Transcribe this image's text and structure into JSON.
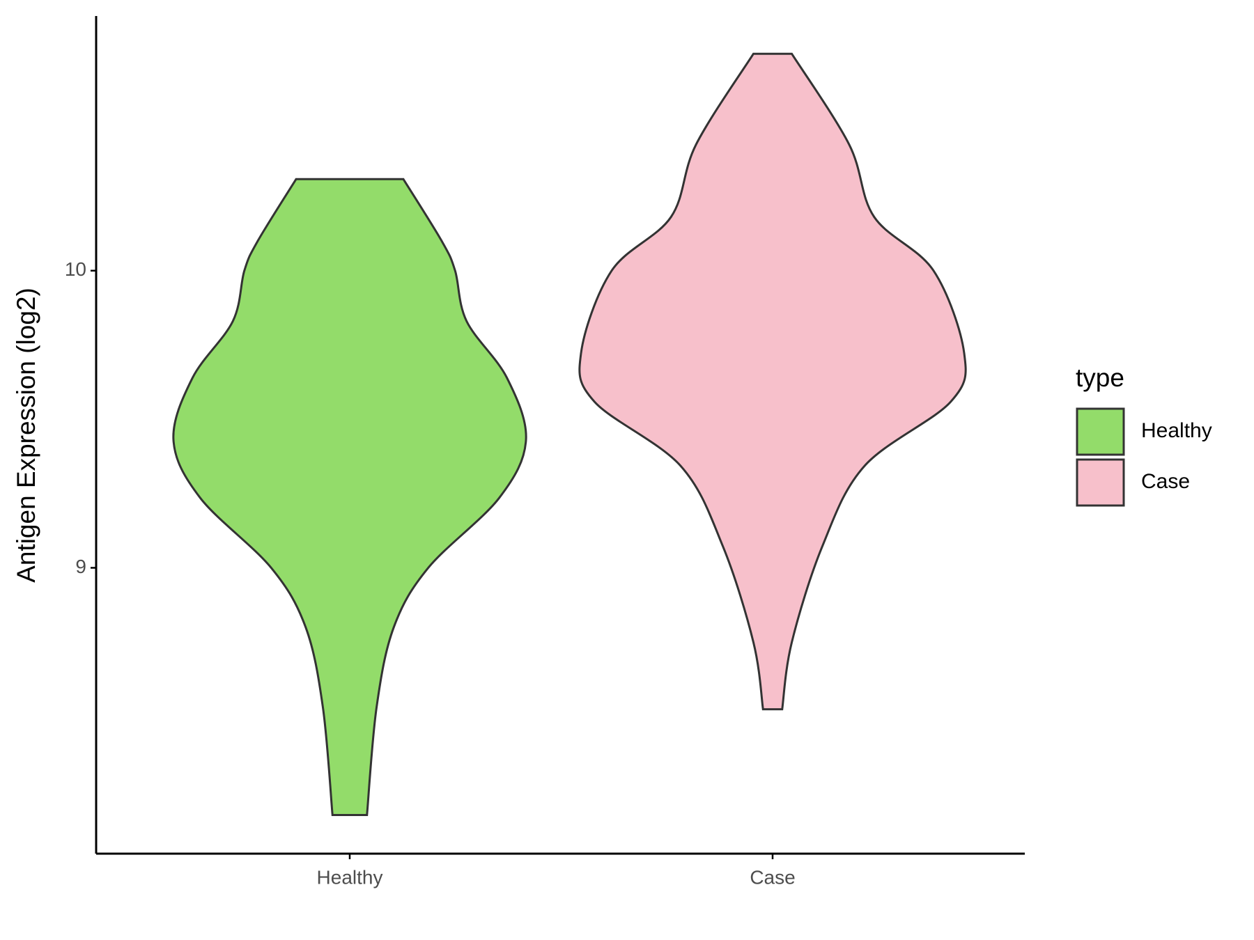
{
  "chart_data": {
    "type": "violin",
    "y_label": "Antigen Expression (log2)",
    "legend_title": "type",
    "categories": [
      "Healthy",
      "Case"
    ],
    "series": [
      {
        "name": "Healthy",
        "color": "#93dc6a",
        "y": [
          10.308,
          10.1,
          10.0,
          9.83,
          9.64,
          9.43,
          9.235,
          9.0,
          8.8,
          8.53,
          8.168
        ],
        "density": [
          0.28,
          0.48,
          0.55,
          0.61,
          0.82,
          0.92,
          0.78,
          0.41,
          0.23,
          0.14,
          0.09
        ]
      },
      {
        "name": "Case",
        "color": "#f7c0cb",
        "y": [
          10.73,
          10.424,
          10.181,
          10.0,
          9.722,
          9.559,
          9.343,
          9.073,
          8.749,
          8.524
        ],
        "density": [
          0.1,
          0.4,
          0.53,
          0.84,
          1.0,
          0.93,
          0.48,
          0.26,
          0.1,
          0.05
        ]
      }
    ],
    "ylim": [
      8.038,
      10.857
    ],
    "yticks": [
      9,
      10
    ]
  }
}
